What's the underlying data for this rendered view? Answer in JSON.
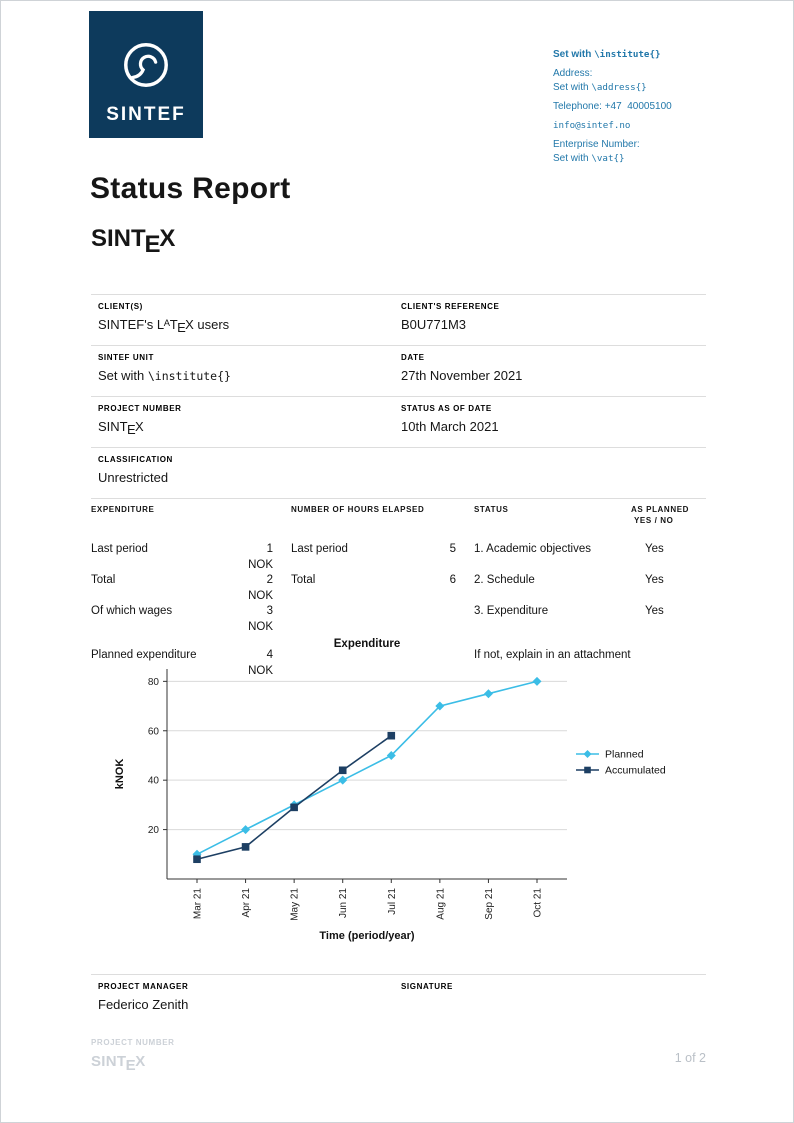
{
  "logo": {
    "text": "SINTEF",
    "bg": "#0d3a5c"
  },
  "contact": {
    "institute_prefix": "Set with ",
    "institute_code": "\\institute{}",
    "address_label": "Address:",
    "address_prefix": "Set with ",
    "address_code": "\\address{}",
    "telephone": "Telephone: +47  40005100",
    "email": "info@sintef.no",
    "enterprise_label": "Enterprise Number:",
    "vat_prefix": "Set with ",
    "vat_code": "\\vat{}"
  },
  "title": "Status Report",
  "sintex": {
    "pre": "SINT",
    "e": "E",
    "post": "X"
  },
  "latex": {
    "p1": "SINTEF's L",
    "a": "A",
    "p2": "T",
    "e": "E",
    "p3": "X users"
  },
  "info": {
    "client_label": "CLIENT(S)",
    "client_ref_label": "CLIENT'S REFERENCE",
    "client_ref_value": "B0U771M3",
    "unit_label": "SINTEF UNIT",
    "unit_prefix": "Set with ",
    "unit_code": "\\institute{}",
    "date_label": "DATE",
    "date_value": "27th November 2021",
    "project_label": "PROJECT NUMBER",
    "status_date_label": "STATUS AS OF DATE",
    "status_date_value": "10th March 2021",
    "classification_label": "CLASSIFICATION",
    "classification_value": "Unrestricted"
  },
  "table": {
    "header_expenditure": "EXPENDITURE",
    "header_hours": "NUMBER OF HOURS ELAPSED",
    "header_status": "STATUS",
    "header_planned_1": "AS PLANNED",
    "header_planned_2": "YES / NO",
    "rows": [
      {
        "exp_label": "Last period",
        "exp_val": "1 NOK",
        "hrs_label": "Last period",
        "hrs_val": "5",
        "status": "1. Academic objectives",
        "planned": "Yes"
      },
      {
        "exp_label": "Total",
        "exp_val": "2 NOK",
        "hrs_label": "Total",
        "hrs_val": "6",
        "status": "2. Schedule",
        "planned": "Yes"
      },
      {
        "exp_label": "Of which wages",
        "exp_val": "3 NOK",
        "hrs_label": "",
        "hrs_val": "",
        "status": "3. Expenditure",
        "planned": "Yes"
      },
      {
        "exp_label": "Planned expenditure",
        "exp_val": "4 NOK",
        "hrs_label": "",
        "hrs_val": "",
        "status": "If not, explain in an attachment",
        "planned": ""
      }
    ]
  },
  "chart_data": {
    "type": "line",
    "title": "Expenditure",
    "xlabel": "Time (period/year)",
    "ylabel": "kNOK",
    "categories": [
      "Mar 21",
      "Apr 21",
      "May 21",
      "Jun 21",
      "Jul 21",
      "Aug 21",
      "Sep 21",
      "Oct 21"
    ],
    "series": [
      {
        "name": "Planned",
        "color": "#3bbde6",
        "marker": "diamond",
        "values": [
          10,
          20,
          30,
          40,
          50,
          70,
          75,
          80
        ]
      },
      {
        "name": "Accumulated",
        "color": "#1d3f63",
        "marker": "square",
        "values": [
          8,
          13,
          29,
          44,
          58
        ]
      }
    ],
    "yticks": [
      20,
      40,
      60,
      80
    ],
    "ylim": [
      0,
      85
    ],
    "grid": "horizontal",
    "legend_position": "right"
  },
  "signature": {
    "manager_label": "PROJECT MANAGER",
    "manager_value": "Federico Zenith",
    "signature_label": "SIGNATURE"
  },
  "footer": {
    "project_label": "PROJECT NUMBER",
    "page": "1 of 2"
  }
}
